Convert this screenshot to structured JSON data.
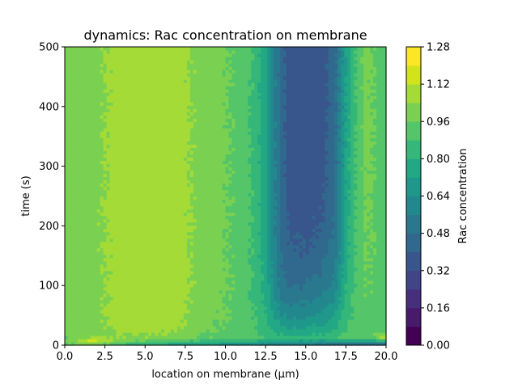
{
  "chart_data": {
    "type": "heatmap",
    "subtype": "filled-contour",
    "title": "dynamics: Rac concentration on membrane",
    "xlabel": "location on membrane (μm)",
    "ylabel": "time (s)",
    "colorbar_label": "Rac concentration",
    "xlim": [
      0.0,
      20.0
    ],
    "ylim": [
      0,
      500
    ],
    "x_ticks": [
      "0.0",
      "2.5",
      "5.0",
      "7.5",
      "10.0",
      "12.5",
      "15.0",
      "17.5",
      "20.0"
    ],
    "y_ticks": [
      "0",
      "100",
      "200",
      "300",
      "400",
      "500"
    ],
    "colorbar_ticks": [
      "0.00",
      "0.16",
      "0.32",
      "0.48",
      "0.64",
      "0.80",
      "0.96",
      "1.12",
      "1.28"
    ],
    "levels": [
      0.0,
      0.08,
      0.16,
      0.24,
      0.32,
      0.4,
      0.48,
      0.56,
      0.64,
      0.72,
      0.8,
      0.88,
      0.96,
      1.04,
      1.12,
      1.2,
      1.28
    ],
    "colormap": "viridis",
    "colors": [
      "#440154",
      "#481a6c",
      "#472f7d",
      "#414487",
      "#39568c",
      "#31688e",
      "#2a788e",
      "#23888e",
      "#1f988b",
      "#22a884",
      "#35b779",
      "#54c568",
      "#7ad151",
      "#a5db36",
      "#d2e21b",
      "#fde725"
    ],
    "profile_x": [
      0.0,
      1.0,
      2.0,
      2.8,
      3.5,
      5.0,
      7.0,
      8.0,
      9.0,
      10.0,
      11.0,
      11.8,
      12.5,
      13.0,
      13.5,
      14.0,
      15.0,
      16.0,
      16.8,
      17.2,
      17.6,
      18.2,
      18.7,
      19.2,
      19.6,
      20.0
    ],
    "profile_steady": [
      0.99,
      1.0,
      1.02,
      1.05,
      1.08,
      1.09,
      1.08,
      1.03,
      1.0,
      0.97,
      0.93,
      0.86,
      0.74,
      0.58,
      0.44,
      0.36,
      0.34,
      0.36,
      0.44,
      0.6,
      0.76,
      0.9,
      0.98,
      0.97,
      0.93,
      0.92
    ],
    "time_samples": [
      0,
      5,
      10,
      20,
      40,
      60,
      90,
      130,
      200,
      300,
      400,
      500
    ]
  }
}
